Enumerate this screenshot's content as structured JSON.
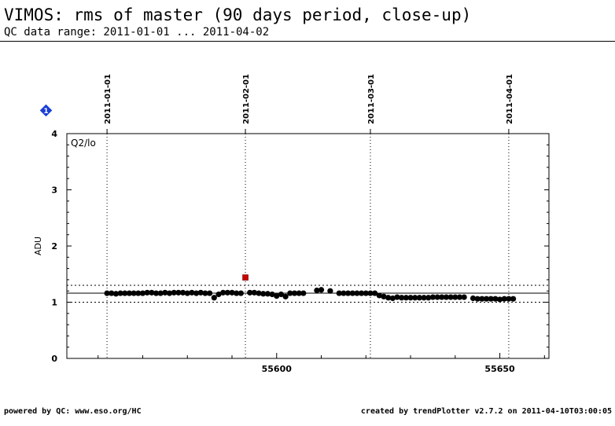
{
  "header": {
    "title": "VIMOS: rms of master (90 days period, close-up)",
    "subtitle": "QC data range: 2011-01-01 ... 2011-04-02"
  },
  "footer": {
    "left": "powered by QC: www.eso.org/HC",
    "right": "created by trendPlotter v2.7.2 on 2011-04-10T03:00:05"
  },
  "chart_data": {
    "type": "scatter",
    "panel_label": "Q2/lo",
    "badge": "1",
    "ylabel": "ADU",
    "xlim": [
      55553,
      55661
    ],
    "ylim": [
      0,
      4
    ],
    "x_ticks": [
      55600,
      55650
    ],
    "y_ticks": [
      0,
      1,
      2,
      3,
      4
    ],
    "reference_line": 1.16,
    "threshold_lines": [
      1.0,
      1.3
    ],
    "date_markers": [
      {
        "label": "2011-01-01",
        "mjd": 55562
      },
      {
        "label": "2011-02-01",
        "mjd": 55593
      },
      {
        "label": "2011-03-01",
        "mjd": 55621
      },
      {
        "label": "2011-04-01",
        "mjd": 55652
      }
    ],
    "colors": {
      "points": "#000000",
      "outlier": "#cc0000",
      "badge": "#1a3fd6"
    },
    "outliers": [
      {
        "x": 55593,
        "y": 1.44
      }
    ],
    "points": [
      [
        55562,
        1.16
      ],
      [
        55563,
        1.16
      ],
      [
        55564,
        1.15
      ],
      [
        55565,
        1.16
      ],
      [
        55566,
        1.16
      ],
      [
        55567,
        1.16
      ],
      [
        55568,
        1.16
      ],
      [
        55569,
        1.16
      ],
      [
        55570,
        1.16
      ],
      [
        55571,
        1.17
      ],
      [
        55572,
        1.17
      ],
      [
        55573,
        1.16
      ],
      [
        55574,
        1.16
      ],
      [
        55575,
        1.17
      ],
      [
        55576,
        1.16
      ],
      [
        55577,
        1.17
      ],
      [
        55578,
        1.17
      ],
      [
        55579,
        1.17
      ],
      [
        55580,
        1.16
      ],
      [
        55581,
        1.17
      ],
      [
        55582,
        1.16
      ],
      [
        55583,
        1.17
      ],
      [
        55584,
        1.16
      ],
      [
        55585,
        1.16
      ],
      [
        55586,
        1.08
      ],
      [
        55587,
        1.14
      ],
      [
        55588,
        1.17
      ],
      [
        55589,
        1.17
      ],
      [
        55590,
        1.17
      ],
      [
        55591,
        1.16
      ],
      [
        55592,
        1.16
      ],
      [
        55594,
        1.17
      ],
      [
        55595,
        1.17
      ],
      [
        55596,
        1.16
      ],
      [
        55597,
        1.15
      ],
      [
        55598,
        1.15
      ],
      [
        55599,
        1.14
      ],
      [
        55600,
        1.11
      ],
      [
        55601,
        1.14
      ],
      [
        55602,
        1.1
      ],
      [
        55603,
        1.16
      ],
      [
        55604,
        1.16
      ],
      [
        55605,
        1.16
      ],
      [
        55606,
        1.16
      ],
      [
        55609,
        1.21
      ],
      [
        55610,
        1.22
      ],
      [
        55612,
        1.2
      ],
      [
        55614,
        1.16
      ],
      [
        55615,
        1.16
      ],
      [
        55616,
        1.16
      ],
      [
        55617,
        1.16
      ],
      [
        55618,
        1.16
      ],
      [
        55619,
        1.16
      ],
      [
        55620,
        1.16
      ],
      [
        55621,
        1.16
      ],
      [
        55622,
        1.16
      ],
      [
        55623,
        1.12
      ],
      [
        55624,
        1.1
      ],
      [
        55625,
        1.08
      ],
      [
        55626,
        1.07
      ],
      [
        55627,
        1.09
      ],
      [
        55628,
        1.08
      ],
      [
        55629,
        1.08
      ],
      [
        55630,
        1.08
      ],
      [
        55631,
        1.08
      ],
      [
        55632,
        1.08
      ],
      [
        55633,
        1.08
      ],
      [
        55634,
        1.08
      ],
      [
        55635,
        1.09
      ],
      [
        55636,
        1.09
      ],
      [
        55637,
        1.09
      ],
      [
        55638,
        1.09
      ],
      [
        55639,
        1.09
      ],
      [
        55640,
        1.09
      ],
      [
        55641,
        1.09
      ],
      [
        55642,
        1.09
      ],
      [
        55644,
        1.07
      ],
      [
        55645,
        1.06
      ],
      [
        55646,
        1.06
      ],
      [
        55647,
        1.06
      ],
      [
        55648,
        1.06
      ],
      [
        55649,
        1.06
      ],
      [
        55650,
        1.05
      ],
      [
        55651,
        1.06
      ],
      [
        55652,
        1.06
      ],
      [
        55653,
        1.06
      ]
    ]
  }
}
